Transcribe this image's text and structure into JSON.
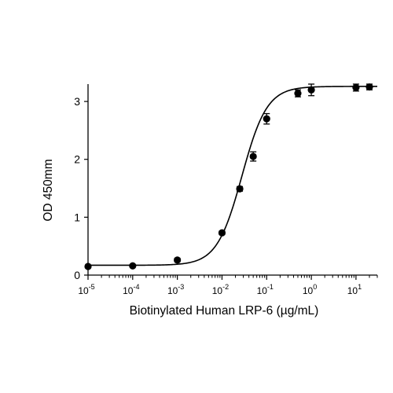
{
  "chart_data": {
    "type": "scatter",
    "xscale": "log",
    "xlabel": "Biotinylated Human LRP-6 (µg/mL)",
    "ylabel": "OD 450mm",
    "xlim": [
      1e-05,
      30
    ],
    "ylim": [
      0,
      3.3
    ],
    "x_tick_base": "10",
    "x_tick_exponents": [
      "-5",
      "-4",
      "-3",
      "-2",
      "-1",
      "0",
      "1"
    ],
    "x_tick_values": [
      1e-05,
      0.0001,
      0.001,
      0.01,
      0.1,
      1,
      10
    ],
    "y_ticks": [
      0,
      1,
      2,
      3
    ],
    "y_tick_labels": [
      "0",
      "1",
      "2",
      "3"
    ],
    "grid": false,
    "series": [
      {
        "x": [
          1e-05,
          0.0001,
          0.001,
          0.01,
          0.025,
          0.05,
          0.1,
          0.5,
          1,
          10,
          20
        ],
        "y": [
          0.15,
          0.16,
          0.26,
          0.73,
          1.49,
          2.05,
          2.7,
          3.14,
          3.2,
          3.24,
          3.25
        ],
        "error": [
          0.02,
          0.02,
          0.03,
          0.03,
          0.04,
          0.08,
          0.09,
          0.06,
          0.1,
          0.06,
          0.05
        ]
      }
    ],
    "fit_curve": {
      "model": "4PL",
      "bottom": 0.17,
      "top": 3.26,
      "ec50": 0.028,
      "hill": 1.55
    },
    "marker_color": "#000000",
    "line_color": "#000000"
  }
}
